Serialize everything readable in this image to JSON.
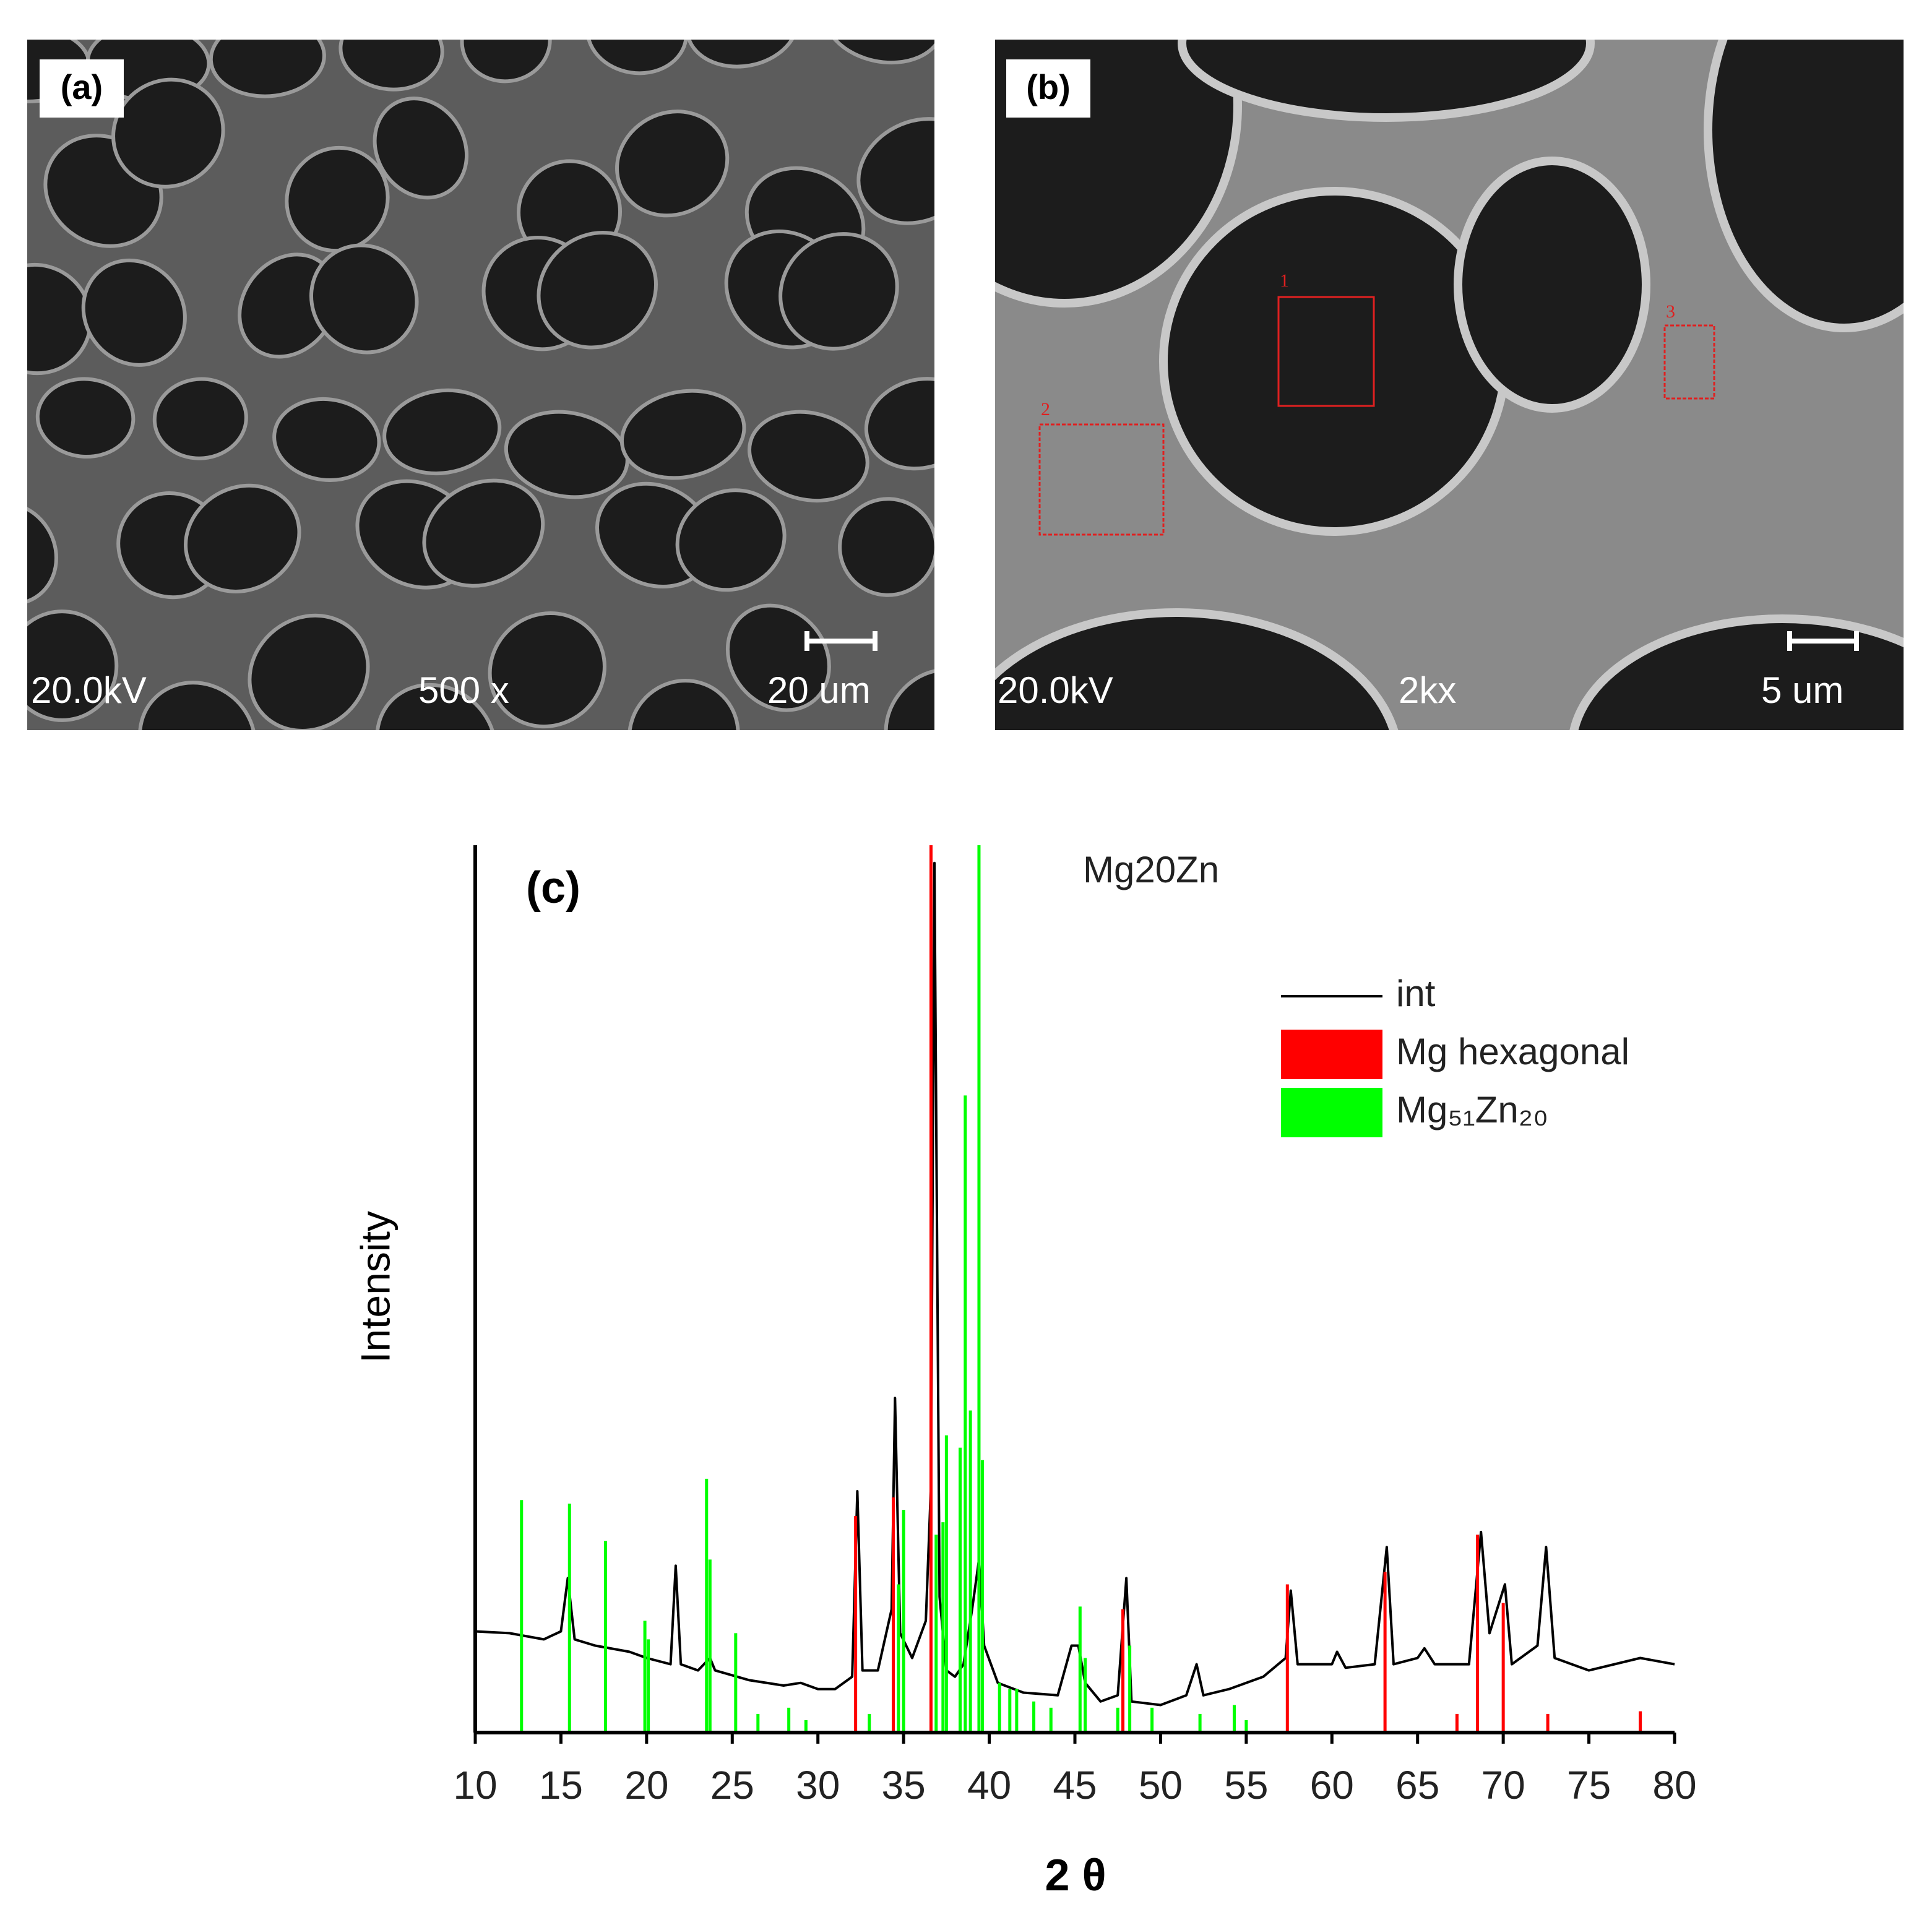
{
  "panels": [
    {
      "label": "(a)",
      "voltage": "20.0kV",
      "magnification": "500 x",
      "scale": "20 um"
    },
    {
      "label": "(b)",
      "voltage": "20.0kV",
      "magnification": "2kx",
      "scale": "5 um",
      "regions": [
        "1",
        "2",
        "3"
      ]
    }
  ],
  "chart_data": {
    "type": "line",
    "panel_label": "(c)",
    "title": "Mg20Zn",
    "xlabel": "2 θ",
    "ylabel": "Intensity",
    "xlim": [
      10,
      80
    ],
    "xticks": [
      10,
      15,
      20,
      25,
      30,
      35,
      40,
      45,
      50,
      55,
      60,
      65,
      70,
      75,
      80
    ],
    "ylim": [
      0,
      100
    ],
    "legend": "upper right",
    "series": [
      {
        "name": "int",
        "type": "line",
        "color": "#000000",
        "x": [
          10,
          12,
          14,
          15,
          15.4,
          15.8,
          17,
          19,
          20,
          21.4,
          21.7,
          22,
          23,
          23.7,
          24,
          26,
          28,
          29,
          30,
          31,
          32,
          32.3,
          32.6,
          33.5,
          34.3,
          34.5,
          34.8,
          35.5,
          36.3,
          36.6,
          36.8,
          37.1,
          37.5,
          38,
          38.5,
          39,
          39.4,
          39.7,
          40.5,
          42,
          44,
          44.8,
          45.2,
          45.6,
          46.5,
          47.5,
          48,
          48.3,
          50,
          51.5,
          52.1,
          52.5,
          54,
          56,
          57.3,
          57.6,
          58,
          60,
          60.3,
          60.8,
          62.5,
          63.2,
          63.6,
          65,
          65.4,
          66,
          68,
          68.7,
          69.2,
          70.1,
          70.5,
          72,
          72.5,
          73,
          75,
          78,
          80
        ],
        "values": [
          11.4,
          11.2,
          10.5,
          11.4,
          17.4,
          10.5,
          9.8,
          9.1,
          8.4,
          7.7,
          18.8,
          7.7,
          7.0,
          8.4,
          7.0,
          5.9,
          5.3,
          5.6,
          4.9,
          4.9,
          6.3,
          27.2,
          7.0,
          7.0,
          13.9,
          37.7,
          11.2,
          8.4,
          12.6,
          27.9,
          98,
          15.3,
          7.0,
          6.3,
          7.7,
          13.9,
          19.5,
          9.8,
          5.6,
          4.5,
          4.2,
          9.8,
          9.8,
          5.6,
          3.5,
          4.2,
          17.4,
          3.5,
          3.1,
          4.2,
          7.7,
          4.2,
          4.9,
          6.3,
          8.4,
          16.0,
          7.7,
          7.7,
          9.1,
          7.3,
          7.7,
          20.9,
          7.7,
          8.4,
          9.5,
          7.7,
          7.7,
          22.6,
          11.2,
          16.7,
          7.7,
          9.8,
          20.9,
          8.4,
          7.0,
          8.4,
          7.7
        ]
      },
      {
        "name": "Mg hexagonal",
        "type": "stick",
        "color": "#ff0000",
        "x": [
          32.2,
          34.4,
          36.6,
          47.8,
          57.4,
          63.1,
          67.3,
          68.5,
          70.0,
          72.6,
          78.0
        ],
        "values": [
          24.4,
          26.5,
          100,
          13.9,
          16.7,
          18.1,
          2.1,
          22.3,
          14.6,
          2.1,
          2.4
        ]
      },
      {
        "name": "Mg₅₁Zn₂₀",
        "type": "stick",
        "color": "#00ff00",
        "x": [
          12.7,
          15.5,
          17.6,
          19.9,
          20.1,
          23.5,
          23.7,
          25.2,
          26.5,
          28.3,
          29.3,
          33.0,
          34.7,
          35.0,
          36.9,
          37.3,
          37.5,
          38.3,
          38.6,
          38.9,
          39.4,
          39.6,
          40.6,
          41.2,
          41.6,
          42.6,
          43.6,
          45.3,
          45.6,
          47.5,
          48.2,
          49.5,
          52.3,
          54.3,
          55.0
        ],
        "values": [
          26.2,
          25.8,
          21.6,
          12.6,
          10.5,
          28.6,
          19.5,
          11.2,
          2.1,
          2.8,
          1.4,
          2.1,
          16.7,
          25.1,
          22.3,
          23.7,
          33.5,
          32.1,
          71.8,
          36.3,
          100,
          30.7,
          5.6,
          4.9,
          4.9,
          3.5,
          2.8,
          14.2,
          8.4,
          2.8,
          9.8,
          2.8,
          2.1,
          3.1,
          1.4
        ]
      }
    ]
  }
}
